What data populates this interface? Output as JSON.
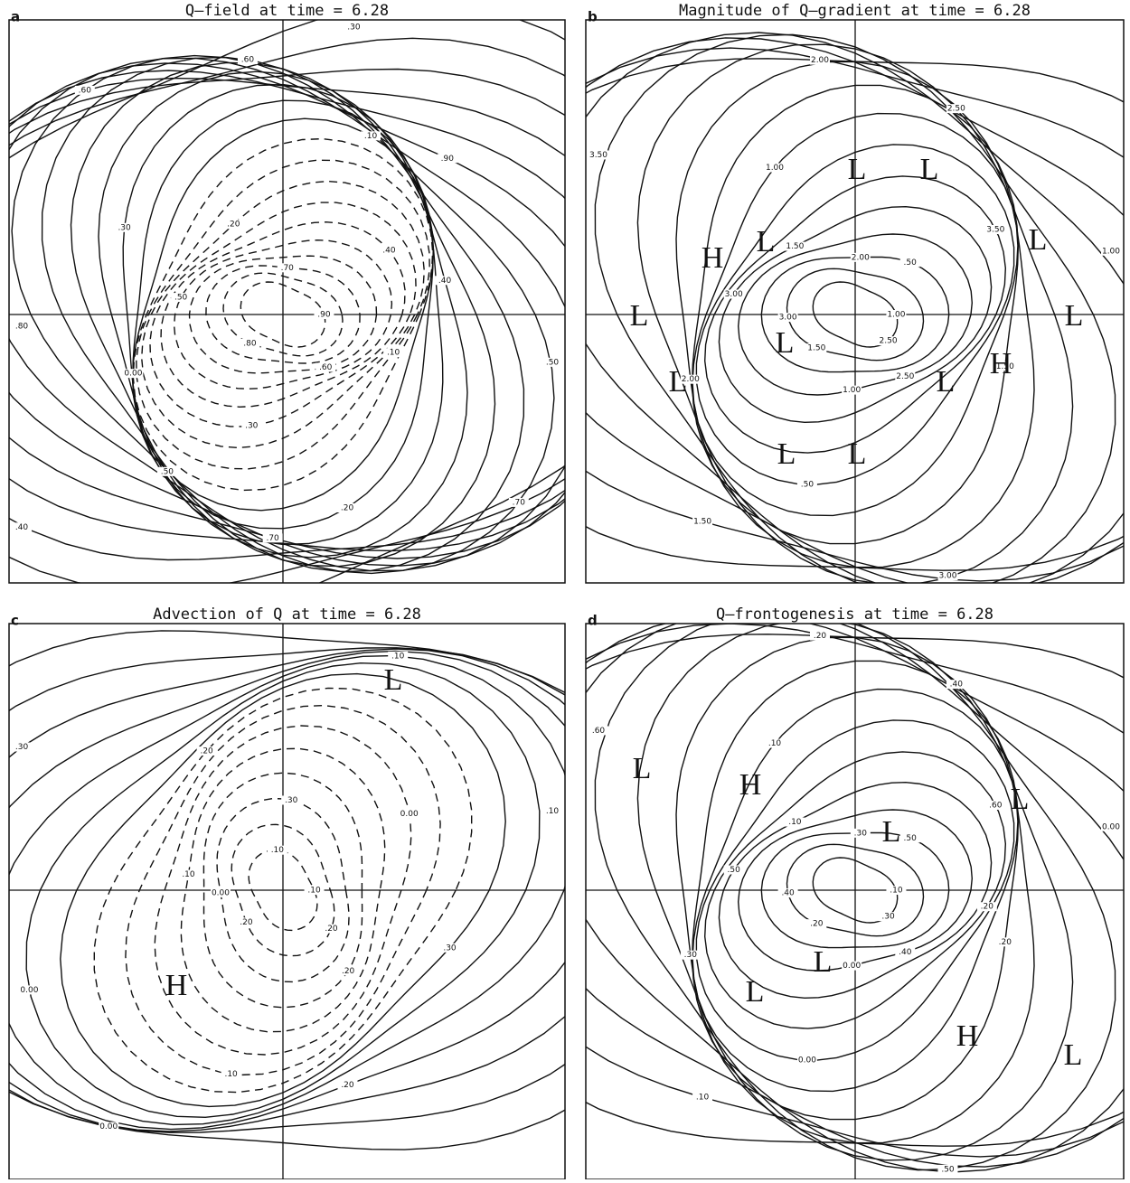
{
  "panels": [
    {
      "letter": "a",
      "title": "Q–field at time = 6.28",
      "contour_labels": [
        ".90",
        ".80",
        ".70",
        ".60",
        ".50",
        ".40",
        ".30",
        ".20",
        ".10",
        "0.00",
        ".10",
        ".20",
        ".30",
        ".40",
        ".50",
        ".60",
        ".70",
        ".80",
        ".90",
        ".70",
        ".60",
        ".50",
        ".40",
        ".30"
      ],
      "markers": []
    },
    {
      "letter": "b",
      "title": "Magnitude of Q–gradient at time = 6.28",
      "contour_labels": [
        "1.00",
        "1.50",
        "2.00",
        "2.50",
        "3.00",
        "3.50",
        ".50",
        "1.00",
        "1.50",
        "2.00",
        "2.50",
        "3.00",
        "3.50",
        "1.00",
        "1.50",
        "2.00",
        "2.50",
        "3.00",
        ".50",
        "1.00",
        "1.50"
      ],
      "markers": [
        "L",
        "L",
        "L",
        "L",
        "L",
        "L",
        "L",
        "L",
        "L",
        "L",
        "L",
        "H",
        "H"
      ]
    },
    {
      "letter": "c",
      "title": "Advection of Q at time = 6.28",
      "contour_labels": [
        ".10",
        ".20",
        ".30",
        ".20",
        ".10",
        "0.00",
        ".10",
        ".20",
        ".30",
        "0.00",
        ".10",
        ".20",
        ".30",
        ".10",
        "0.00",
        ".10",
        ".20",
        "0.00"
      ],
      "markers": [
        "L",
        "H"
      ]
    },
    {
      "letter": "d",
      "title": "Q–frontogenesis at time = 6.28",
      "contour_labels": [
        ".10",
        ".20",
        ".30",
        ".40",
        ".50",
        ".60",
        "0.00",
        ".10",
        ".20",
        ".30",
        ".40",
        ".50",
        ".60",
        "0.00",
        ".10",
        ".20",
        ".30",
        ".40",
        ".50",
        "0.00",
        ".10",
        ".20"
      ],
      "markers": [
        "L",
        "L",
        "L",
        "L",
        "L",
        "L",
        "H",
        "H"
      ]
    }
  ]
}
